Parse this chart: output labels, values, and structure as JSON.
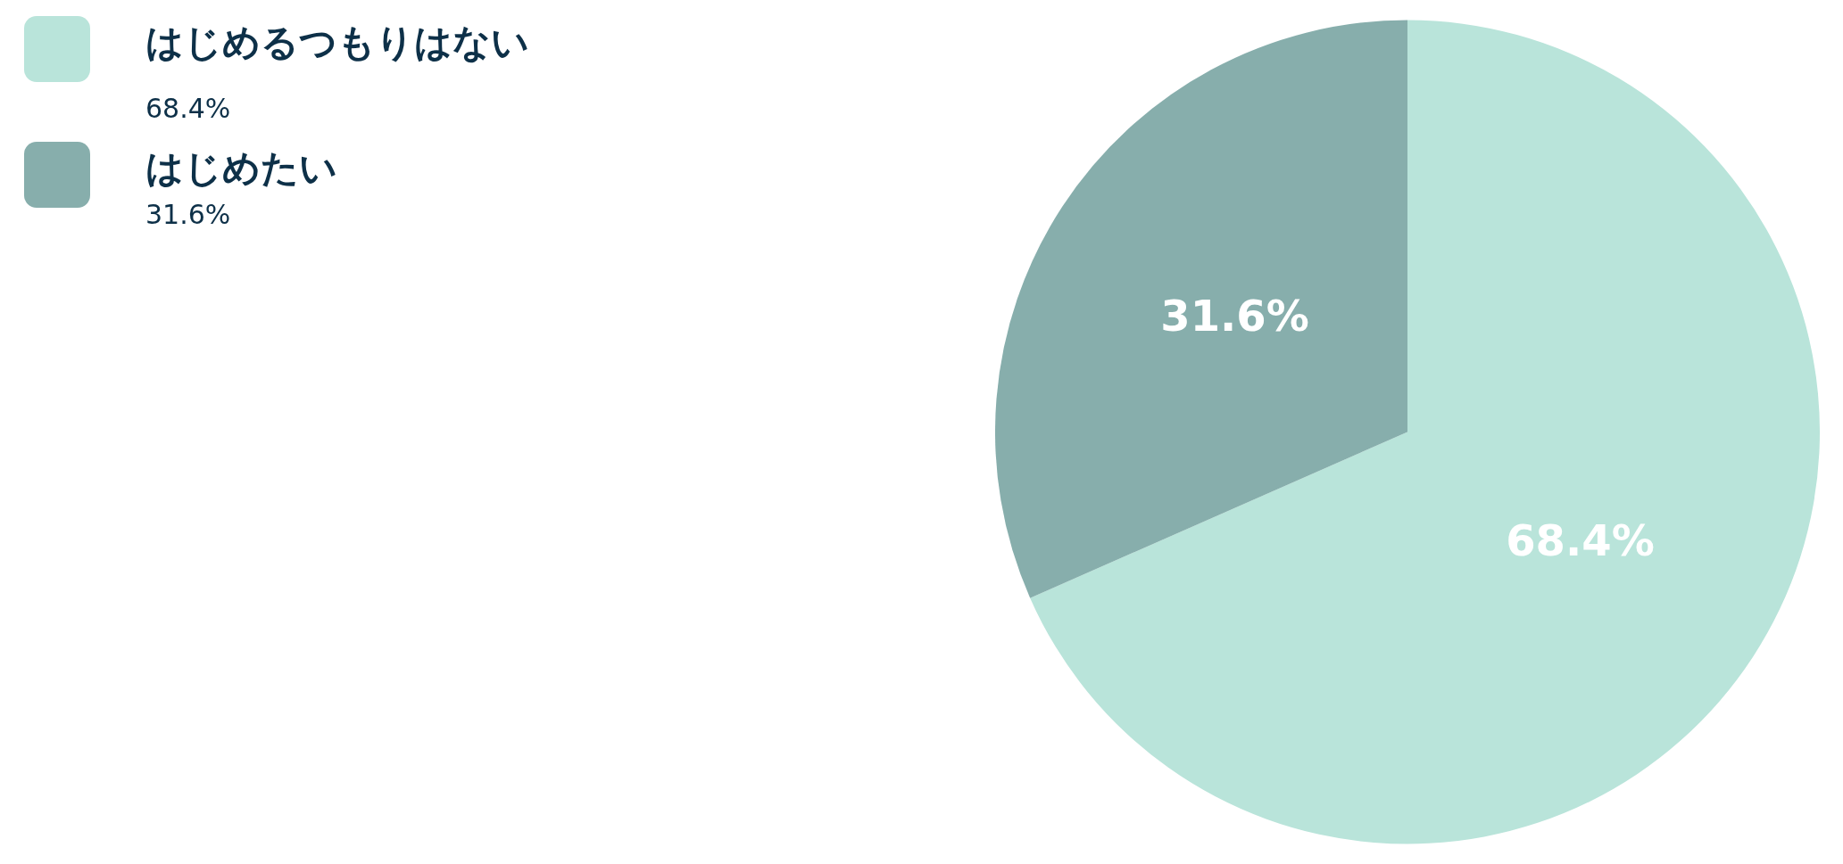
{
  "chart_data": {
    "type": "pie",
    "categories": [
      "はじめるつもりはない",
      "はじめたい"
    ],
    "values": [
      68.4,
      31.6
    ],
    "colors": [
      "#b9e4da",
      "#87aeac"
    ],
    "value_labels": [
      "68.4%",
      "31.6%"
    ],
    "legend": "top left"
  }
}
